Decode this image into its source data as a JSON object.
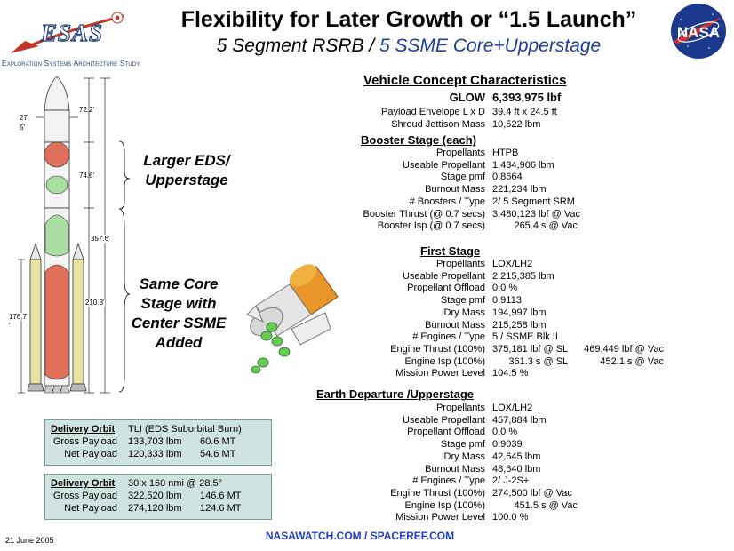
{
  "header": {
    "logo_word": "ESAS",
    "logo_subtitle": "Exploration Systems Architecture Study",
    "title": "Flexibility for Later Growth or “1.5 Launch”",
    "subtitle_part1": "5 Segment RSRB / ",
    "subtitle_part2": "5 SSME Core+Upperstage",
    "nasa_logo_text": "NASA"
  },
  "rocket_dims": {
    "d1": "72.2'",
    "d2": "27.",
    "d2b": "5'",
    "d3": "74.6'",
    "d4": "357.6'",
    "d5": "210.3'",
    "d6": "176.7",
    "d6b": "'"
  },
  "callouts": {
    "eds": [
      "Larger EDS/",
      "Upperstage"
    ],
    "core": [
      "Same  Core",
      "Stage with",
      "Center SSME",
      "Added"
    ]
  },
  "characteristics": {
    "heading": "Vehicle Concept Characteristics",
    "glow_label": "GLOW",
    "glow_value": "6,393,975 lbf",
    "top_rows": [
      {
        "label": "Payload Envelope L x D",
        "value": "39.4 ft x 24.5 ft"
      },
      {
        "label": "Shroud Jettison Mass",
        "value": "10,522 lbm"
      }
    ],
    "booster": {
      "heading": "Booster Stage (each)",
      "rows": [
        {
          "label": "Propellants",
          "value": "HTPB"
        },
        {
          "label": "Useable Propellant",
          "value": "1,434,906 lbm"
        },
        {
          "label": "Stage pmf",
          "value": "0.8664"
        },
        {
          "label": "Burnout Mass",
          "value": "221,234 lbm"
        },
        {
          "label": "# Boosters / Type",
          "value": "2/ 5 Segment SRM"
        },
        {
          "label": "Booster Thrust (@ 0.7 secs)",
          "value": "3,480,123 lbf @ Vac"
        },
        {
          "label": "Booster Isp (@ 0.7 secs)",
          "value": "        265.4 s @ Vac"
        }
      ]
    },
    "first_stage": {
      "heading": "First Stage",
      "rows": [
        {
          "label": "Propellants",
          "value": "LOX/LH2"
        },
        {
          "label": "Useable Propellant",
          "value": "2,215,385 lbm"
        },
        {
          "label": "Propellant Offload",
          "value": "0.0 %"
        },
        {
          "label": "Stage pmf",
          "value": "0.9113"
        },
        {
          "label": "Dry Mass",
          "value": "194,997 lbm"
        },
        {
          "label": "Burnout Mass",
          "value": "215,258 lbm"
        },
        {
          "label": "# Engines / Type",
          "value": "5 / SSME Blk II"
        },
        {
          "label": "Engine Thrust (100%)",
          "value": "375,181 lbf @ SL      469,449 lbf @ Vac"
        },
        {
          "label": "Engine Isp (100%)",
          "value": "      361.3 s @ SL            452.1 s @ Vac"
        },
        {
          "label": "Mission Power Level",
          "value": "104.5 %"
        }
      ]
    },
    "eds": {
      "heading": "Earth Departure /Upperstage",
      "rows": [
        {
          "label": "Propellants",
          "value": "LOX/LH2"
        },
        {
          "label": "Useable Propellant",
          "value": "457,884 lbm"
        },
        {
          "label": "Propellant Offload",
          "value": "0.0 %"
        },
        {
          "label": "Stage pmf",
          "value": "0.9039"
        },
        {
          "label": "Dry Mass",
          "value": "42,645 lbm"
        },
        {
          "label": "Burnout Mass",
          "value": "48,640 lbm"
        },
        {
          "label": "# Engines / Type",
          "value": "2/ J-2S+"
        },
        {
          "label": "Engine Thrust (100%)",
          "value": "274,500 lbf @ Vac"
        },
        {
          "label": "Engine Isp (100%)",
          "value": "        451.5 s @ Vac"
        },
        {
          "label": "Mission Power Level",
          "value": "100.0 %"
        }
      ]
    }
  },
  "orbit_tli": {
    "heading": "Delivery Orbit",
    "heading_value": "TLI (EDS Suborbital Burn)",
    "rows": [
      {
        "label": "Gross Payload",
        "lbm": "133,703 lbm",
        "mt": "60.6 MT"
      },
      {
        "label": "Net Payload",
        "lbm": "120,333 lbm",
        "mt": "54.6 MT"
      }
    ]
  },
  "orbit_leo": {
    "heading": "Delivery Orbit",
    "heading_value": "30 x 160 nmi  @ 28.5°",
    "rows": [
      {
        "label": "Gross Payload",
        "lbm": "322,520 lbm",
        "mt": "146.6 MT"
      },
      {
        "label": "Net Payload",
        "lbm": "274,120 lbm",
        "mt": "124.6 MT"
      }
    ]
  },
  "footer": {
    "date": "21 June 2005",
    "link": "NASAWATCH.COM / SPACEREF.COM"
  }
}
